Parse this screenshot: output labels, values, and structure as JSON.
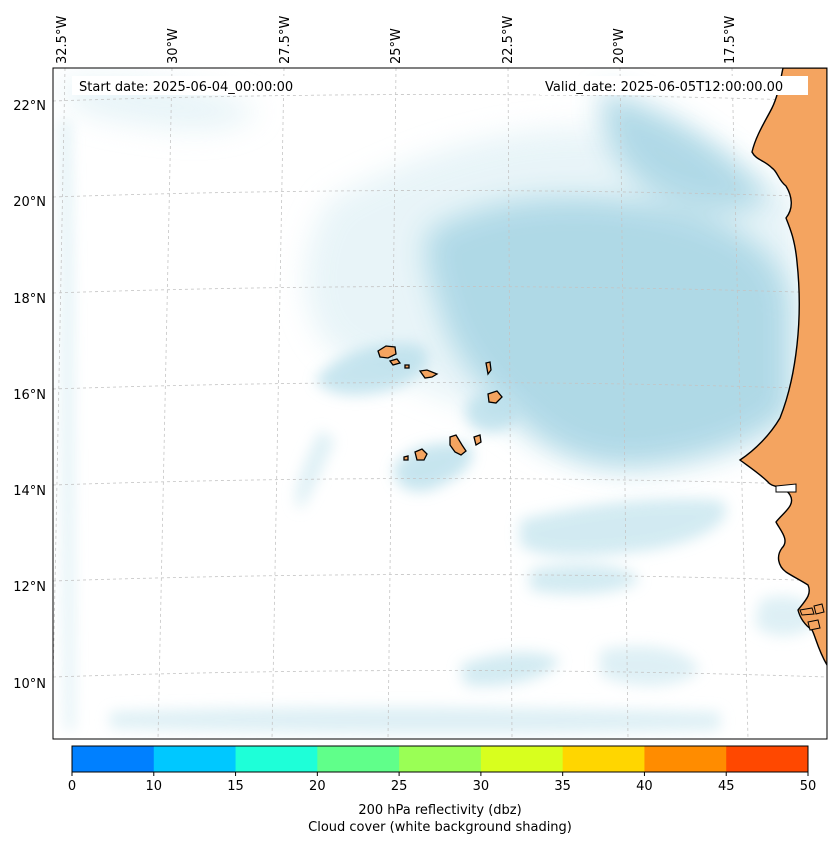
{
  "map": {
    "lon_labels": [
      "32.5°W",
      "30°W",
      "27.5°W",
      "25°W",
      "22.5°W",
      "20°W",
      "17.5°W"
    ],
    "lat_labels": [
      "22°N",
      "20°N",
      "18°N",
      "16°N",
      "14°N",
      "12°N",
      "10°N"
    ],
    "start_date": "Start date: 2025-06-04_00:00:00",
    "valid_date": "Valid_date: 2025-06-05T12:00:00.00",
    "land_color": "#f4a460",
    "cloud_color": "#add8e6",
    "coastline_color": "#000000"
  },
  "colorbar": {
    "ticks": [
      "0",
      "10",
      "15",
      "20",
      "25",
      "30",
      "35",
      "40",
      "45",
      "50"
    ],
    "colors": [
      "#0080ff",
      "#00c8ff",
      "#1effd8",
      "#60ff8a",
      "#9aff55",
      "#d8ff1e",
      "#ffd600",
      "#ff8c00",
      "#ff4800"
    ],
    "label_line1": "200 hPa reflectivity (dbz)",
    "label_line2": "Cloud cover (white background shading)"
  }
}
